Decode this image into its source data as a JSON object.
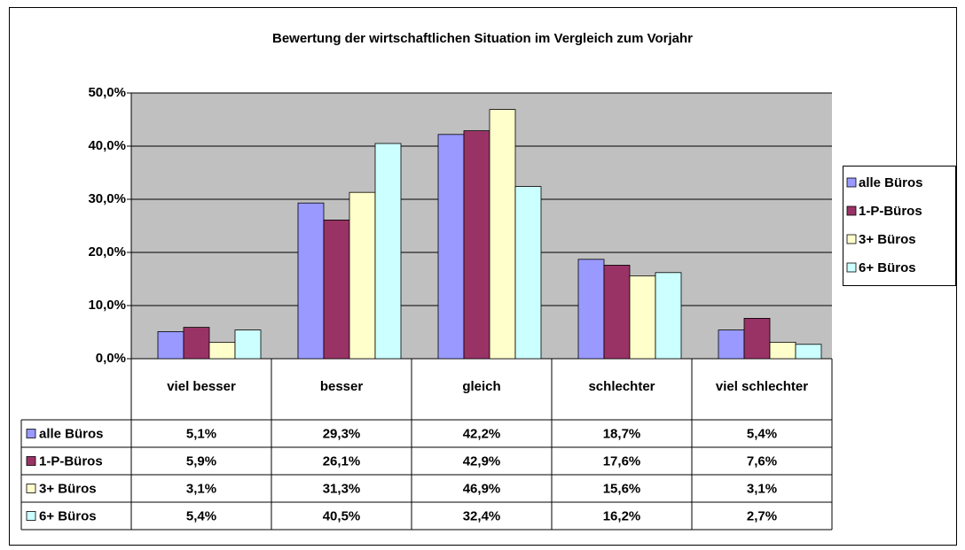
{
  "chart_data": {
    "type": "bar",
    "title": "Bewertung der wirtschaftlichen Situation im Vergleich zum Vorjahr",
    "categories": [
      "viel besser",
      "besser",
      "gleich",
      "schlechter",
      "viel schlechter"
    ],
    "series": [
      {
        "name": "alle Büros",
        "color": "#9999ff",
        "values": [
          5.1,
          29.3,
          42.2,
          18.7,
          5.4
        ],
        "value_labels": [
          "5,1%",
          "29,3%",
          "42,2%",
          "18,7%",
          "5,4%"
        ]
      },
      {
        "name": "1-P-Büros",
        "color": "#993366",
        "values": [
          5.9,
          26.1,
          42.9,
          17.6,
          7.6
        ],
        "value_labels": [
          "5,9%",
          "26,1%",
          "42,9%",
          "17,6%",
          "7,6%"
        ]
      },
      {
        "name": "3+ Büros",
        "color": "#ffffcc",
        "values": [
          3.1,
          31.3,
          46.9,
          15.6,
          3.1
        ],
        "value_labels": [
          "3,1%",
          "31,3%",
          "46,9%",
          "15,6%",
          "3,1%"
        ]
      },
      {
        "name": "6+ Büros",
        "color": "#ccffff",
        "values": [
          5.4,
          40.5,
          32.4,
          16.2,
          2.7
        ],
        "value_labels": [
          "5,4%",
          "40,5%",
          "32,4%",
          "16,2%",
          "2,7%"
        ]
      }
    ],
    "ylim": [
      0,
      50
    ],
    "yticks": [
      {
        "value": 0,
        "label": "0,0%"
      },
      {
        "value": 10,
        "label": "10,0%"
      },
      {
        "value": 20,
        "label": "20,0%"
      },
      {
        "value": 30,
        "label": "30,0%"
      },
      {
        "value": 40,
        "label": "40,0%"
      },
      {
        "value": 50,
        "label": "50,0%"
      }
    ],
    "grid": true,
    "legend": "right"
  }
}
